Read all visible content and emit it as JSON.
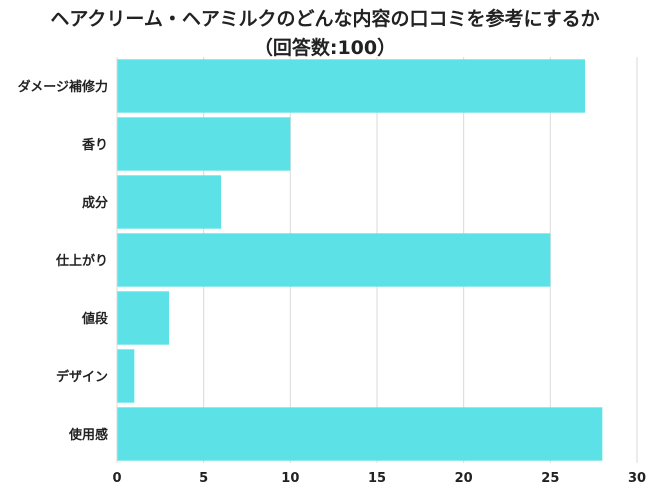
{
  "chart_data": {
    "type": "bar",
    "orientation": "horizontal",
    "title": "ヘアクリーム・ヘアミルクのどんな内容の口コミを参考にするか",
    "subtitle": "（回答数:100）",
    "categories": [
      "ダメージ補修力",
      "香り",
      "成分",
      "仕上がり",
      "値段",
      "デザイン",
      "使用感"
    ],
    "values": [
      27,
      10,
      6,
      25,
      3,
      1,
      28
    ],
    "xlim": [
      0,
      30
    ],
    "xticks": [
      0,
      5,
      10,
      15,
      20,
      25,
      30
    ],
    "grid": true,
    "bar_color": "#5ce1e6",
    "grid_color": "#d9d9d9"
  }
}
